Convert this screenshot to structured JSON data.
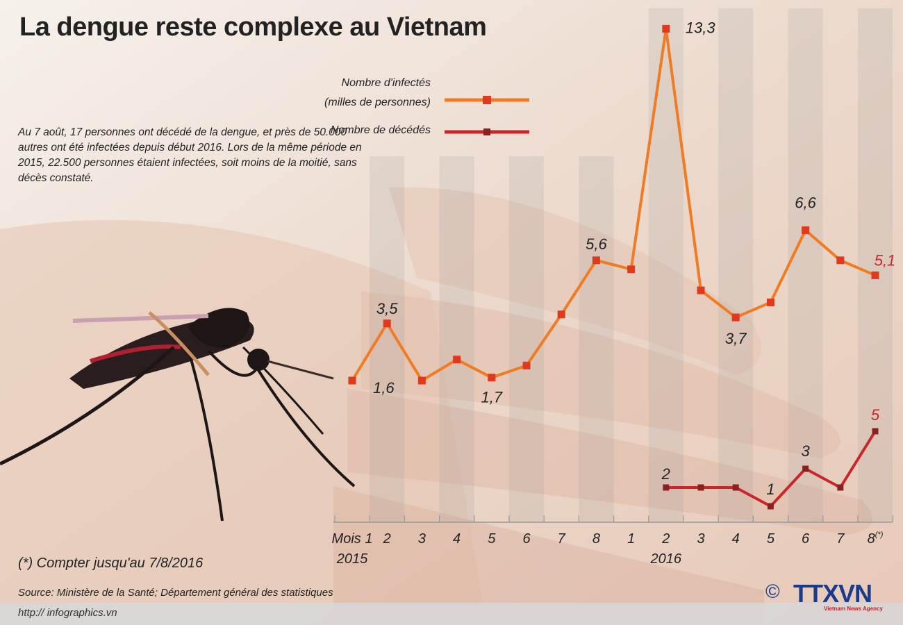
{
  "title": "La dengue reste complexe au Vietnam",
  "intro": "Au 7 août, 17 personnes ont décédé de la dengue, et près de 50.000 autres ont été infectées depuis début 2016. Lors de la même période en 2015, 22.500 personnes étaient infectées, soit moins de la moitié, sans décès constaté.",
  "footnote": "(*) Compter jusqu'au 7/8/2016",
  "source": "Source: Ministère de la Santé; Département général des statistiques",
  "url": "http:// infographics.vn",
  "logo": {
    "brand": "TTXVN",
    "subtitle": "Vietnam News Agency",
    "copyright": "©"
  },
  "colors": {
    "infected": "#f07b22",
    "deaths": "#c8262a",
    "infected_marker": "#e03a1e",
    "deaths_marker": "#8b2020"
  },
  "chart_data": {
    "type": "line",
    "categories": [
      "Mois 1",
      "2",
      "3",
      "4",
      "5",
      "6",
      "7",
      "8",
      "1",
      "2",
      "3",
      "4",
      "5",
      "6",
      "7",
      "8"
    ],
    "category_superscripts": [
      "",
      "",
      "",
      "",
      "",
      "",
      "",
      "",
      "",
      "",
      "",
      "",
      "",
      "",
      "",
      "(*)"
    ],
    "year_labels": [
      {
        "label": "2015",
        "index": 0
      },
      {
        "label": "2016",
        "index": 9
      }
    ],
    "series": [
      {
        "name": "Nombre d'infectés (milles de personnes)",
        "legend_lines": [
          "Nombre d'infectés",
          "(milles de personnes)"
        ],
        "values": [
          1.6,
          3.5,
          1.6,
          2.3,
          1.7,
          2.1,
          3.8,
          5.6,
          5.3,
          13.3,
          4.6,
          3.7,
          4.2,
          6.6,
          5.6,
          5.1
        ],
        "labels": [
          "1,6",
          "3,5",
          "",
          "",
          "1,7",
          "",
          "",
          "5,6",
          "",
          "13,3",
          "",
          "3,7",
          "",
          "6,6",
          "",
          "5,1"
        ]
      },
      {
        "name": "Nombre de décédés",
        "legend_lines": [
          "Nombre de décédés"
        ],
        "values": [
          null,
          null,
          null,
          null,
          null,
          null,
          null,
          null,
          null,
          2,
          2,
          2,
          1,
          3,
          2,
          5
        ],
        "labels": [
          "",
          "",
          "",
          "",
          "",
          "",
          "",
          "",
          "",
          "2",
          "",
          "",
          "1",
          "3",
          "",
          "5"
        ]
      }
    ]
  }
}
